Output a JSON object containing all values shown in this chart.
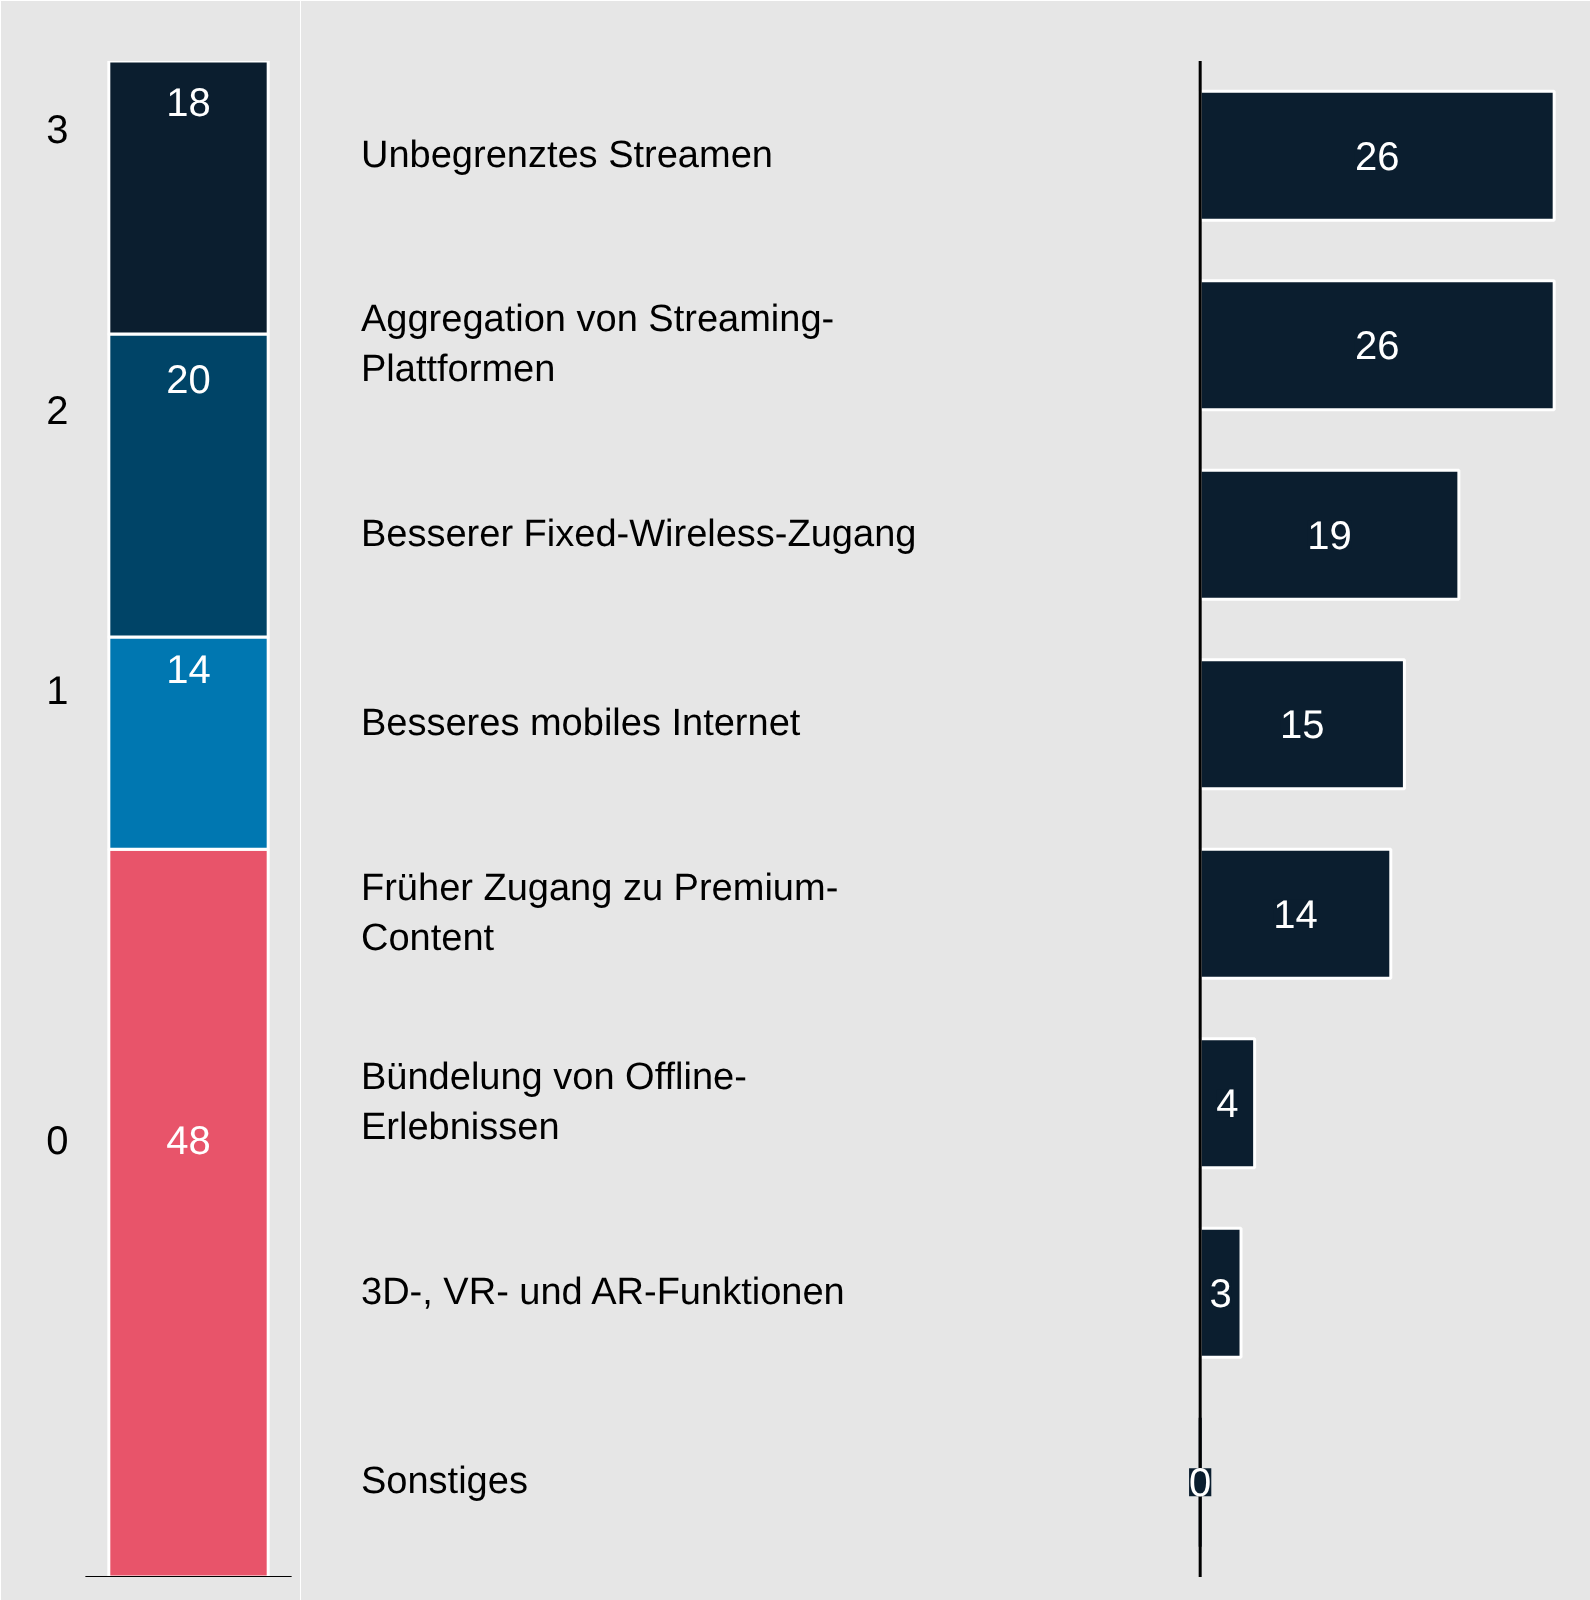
{
  "chart_data": [
    {
      "type": "bar",
      "stacked": true,
      "categories": [
        null
      ],
      "data_labels": true,
      "series": [
        {
          "name": "0",
          "color": "#e8546a",
          "values": [
            48
          ]
        },
        {
          "name": "1",
          "color": "#0077b1",
          "values": [
            14
          ]
        },
        {
          "name": "2",
          "color": "#004467",
          "values": [
            20
          ]
        },
        {
          "name": "3",
          "color": "#0b1e2f",
          "values": [
            18
          ]
        }
      ]
    },
    {
      "type": "bar",
      "orientation": "horizontal",
      "data_labels": true,
      "categories": [
        "Unbegrenztes Streamen",
        "Aggregation von Streaming-Plattformen",
        "Besserer Fixed-Wireless-Zugang",
        "Besseres mobiles Internet",
        "Früher Zugang zu Premium-Content",
        "Bündelung von Offline-Erlebnissen",
        "3D-, VR- und AR-Funktionen",
        "Sonstiges"
      ],
      "series": [
        {
          "color": "#0b1e2f",
          "values": [
            26,
            26,
            19,
            15,
            14,
            4,
            3,
            0
          ]
        }
      ]
    }
  ]
}
